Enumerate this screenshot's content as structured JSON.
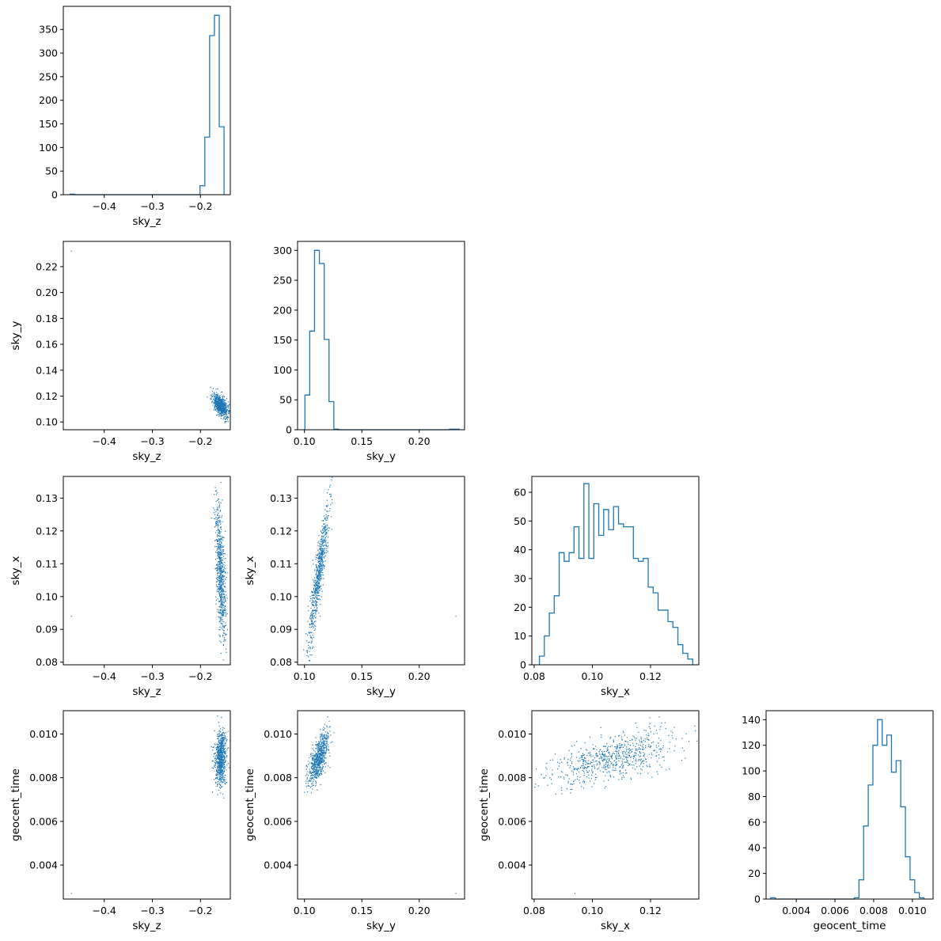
{
  "chart_data": [
    {
      "type": "histogram",
      "panel": "hist-sky_z",
      "xlabel": "sky_z",
      "ylabel": "",
      "xlim": [
        -0.485,
        -0.138
      ],
      "ylim": [
        0,
        399
      ],
      "xticks": [
        -0.4,
        -0.3,
        -0.2
      ],
      "xtick_labels": [
        "−0.4",
        "−0.3",
        "−0.2"
      ],
      "yticks": [
        0,
        50,
        100,
        150,
        200,
        250,
        300,
        350
      ],
      "ytick_labels": [
        "0",
        "50",
        "100",
        "150",
        "200",
        "250",
        "300",
        "350"
      ],
      "edges": [
        -0.471,
        -0.461,
        -0.451,
        -0.441,
        -0.431,
        -0.421,
        -0.411,
        -0.401,
        -0.391,
        -0.381,
        -0.371,
        -0.361,
        -0.351,
        -0.341,
        -0.331,
        -0.321,
        -0.311,
        -0.301,
        -0.291,
        -0.281,
        -0.271,
        -0.261,
        -0.251,
        -0.241,
        -0.231,
        -0.221,
        -0.211,
        -0.201,
        -0.191,
        -0.181,
        -0.171,
        -0.161,
        -0.151
      ],
      "counts": [
        1,
        0,
        0,
        0,
        0,
        0,
        0,
        0,
        0,
        0,
        0,
        0,
        0,
        0,
        0,
        0,
        0,
        0,
        0,
        0,
        0,
        0,
        0,
        0,
        0,
        0,
        0,
        19,
        122,
        337,
        380,
        144
      ]
    },
    {
      "type": "scatter",
      "panel": "sky_z-vs-sky_y",
      "xlabel": "sky_z",
      "ylabel": "sky_y",
      "xlim": [
        -0.485,
        -0.138
      ],
      "ylim": [
        0.094,
        0.2395
      ],
      "xticks": [
        -0.4,
        -0.3,
        -0.2
      ],
      "xtick_labels": [
        "−0.4",
        "−0.3",
        "−0.2"
      ],
      "yticks": [
        0.1,
        0.12,
        0.14,
        0.16,
        0.18,
        0.2,
        0.22
      ],
      "ytick_labels": [
        "0.10",
        "0.12",
        "0.14",
        "0.16",
        "0.18",
        "0.20",
        "0.22"
      ],
      "outliers": [
        {
          "x": -0.468,
          "y": 0.232
        }
      ],
      "clusters": [
        {
          "n": 700,
          "mean": [
            -0.158,
            0.1125
          ],
          "sd": [
            0.008,
            0.0045
          ],
          "corr": -0.5
        }
      ]
    },
    {
      "type": "histogram",
      "panel": "hist-sky_y",
      "xlabel": "sky_y",
      "ylabel": "",
      "xlim": [
        0.094,
        0.2395
      ],
      "ylim": [
        0,
        315
      ],
      "xticks": [
        0.1,
        0.15,
        0.2
      ],
      "xtick_labels": [
        "0.10",
        "0.15",
        "0.20"
      ],
      "yticks": [
        0,
        50,
        100,
        150,
        200,
        250,
        300
      ],
      "ytick_labels": [
        "0",
        "50",
        "100",
        "150",
        "200",
        "250",
        "300"
      ],
      "edges": [
        0.1004,
        0.1046,
        0.1088,
        0.113,
        0.1172,
        0.1214,
        0.1256,
        0.1298,
        0.134,
        0.1382,
        0.1424,
        0.1466,
        0.1508,
        0.155,
        0.1592,
        0.1634,
        0.1676,
        0.1718,
        0.176,
        0.1802,
        0.1844,
        0.1886,
        0.1928,
        0.197,
        0.2012,
        0.2054,
        0.2096,
        0.2138,
        0.218,
        0.2222,
        0.2264,
        0.2306,
        0.2348
      ],
      "counts": [
        58,
        165,
        300,
        278,
        151,
        47,
        1,
        0,
        0,
        0,
        0,
        0,
        0,
        0,
        0,
        0,
        0,
        0,
        0,
        0,
        0,
        0,
        0,
        0,
        0,
        0,
        0,
        0,
        0,
        0,
        1,
        1
      ]
    },
    {
      "type": "scatter",
      "panel": "sky_z-vs-sky_x",
      "xlabel": "sky_z",
      "ylabel": "sky_x",
      "xlim": [
        -0.485,
        -0.138
      ],
      "ylim": [
        0.0792,
        0.1366
      ],
      "xticks": [
        -0.4,
        -0.3,
        -0.2
      ],
      "xtick_labels": [
        "−0.4",
        "−0.3",
        "−0.2"
      ],
      "yticks": [
        0.08,
        0.09,
        0.1,
        0.11,
        0.12,
        0.13
      ],
      "ytick_labels": [
        "0.08",
        "0.09",
        "0.10",
        "0.11",
        "0.12",
        "0.13"
      ],
      "outliers": [
        {
          "x": -0.468,
          "y": 0.094
        }
      ],
      "clusters": [
        {
          "n": 700,
          "mean": [
            -0.158,
            0.107
          ],
          "sd": [
            0.0055,
            0.0105
          ],
          "corr": -0.55
        }
      ]
    },
    {
      "type": "scatter",
      "panel": "sky_y-vs-sky_x",
      "xlabel": "sky_y",
      "ylabel": "sky_x",
      "xlim": [
        0.094,
        0.2395
      ],
      "ylim": [
        0.0792,
        0.1366
      ],
      "xticks": [
        0.1,
        0.15,
        0.2
      ],
      "xtick_labels": [
        "0.10",
        "0.15",
        "0.20"
      ],
      "yticks": [
        0.08,
        0.09,
        0.1,
        0.11,
        0.12,
        0.13
      ],
      "ytick_labels": [
        "0.08",
        "0.09",
        "0.10",
        "0.11",
        "0.12",
        "0.13"
      ],
      "outliers": [
        {
          "x": 0.232,
          "y": 0.094
        }
      ],
      "clusters": [
        {
          "n": 700,
          "mean": [
            0.1125,
            0.107
          ],
          "sd": [
            0.0045,
            0.0105
          ],
          "corr": 0.9
        }
      ]
    },
    {
      "type": "histogram",
      "panel": "hist-sky_x",
      "xlabel": "sky_x",
      "ylabel": "",
      "xlim": [
        0.0792,
        0.1366
      ],
      "ylim": [
        0,
        65.5
      ],
      "xticks": [
        0.08,
        0.1,
        0.12
      ],
      "xtick_labels": [
        "0.08",
        "0.10",
        "0.12"
      ],
      "yticks": [
        0,
        10,
        20,
        30,
        40,
        50,
        60
      ],
      "ytick_labels": [
        "0",
        "10",
        "20",
        "30",
        "40",
        "50",
        "60"
      ],
      "edges": [
        0.0818,
        0.0835,
        0.0852,
        0.0869,
        0.0886,
        0.0903,
        0.092,
        0.0937,
        0.0954,
        0.0971,
        0.0988,
        0.1005,
        0.1022,
        0.1039,
        0.1056,
        0.1073,
        0.109,
        0.1107,
        0.1124,
        0.1141,
        0.1158,
        0.1175,
        0.1192,
        0.1209,
        0.1226,
        0.1243,
        0.126,
        0.1277,
        0.1294,
        0.1311,
        0.1328,
        0.1345
      ],
      "counts": [
        3,
        10,
        18,
        24,
        39,
        36,
        39,
        48,
        37,
        63,
        37,
        56,
        45,
        54,
        47,
        55,
        49,
        48,
        48,
        37,
        36,
        37,
        27,
        25,
        19,
        19,
        15,
        13,
        7,
        4,
        2
      ]
    },
    {
      "type": "scatter",
      "panel": "sky_z-vs-geocent_time",
      "xlabel": "sky_z",
      "ylabel": "geocent_time",
      "xlim": [
        -0.485,
        -0.138
      ],
      "ylim": [
        0.00244,
        0.01107
      ],
      "xticks": [
        -0.4,
        -0.3,
        -0.2
      ],
      "xtick_labels": [
        "−0.4",
        "−0.3",
        "−0.2"
      ],
      "yticks": [
        0.004,
        0.006,
        0.008,
        0.01
      ],
      "ytick_labels": [
        "0.004",
        "0.006",
        "0.008",
        "0.010"
      ],
      "outliers": [
        {
          "x": -0.468,
          "y": 0.0027
        }
      ],
      "clusters": [
        {
          "n": 700,
          "mean": [
            -0.158,
            0.0089
          ],
          "sd": [
            0.006,
            0.00062
          ],
          "corr": 0.15
        }
      ]
    },
    {
      "type": "scatter",
      "panel": "sky_y-vs-geocent_time",
      "xlabel": "sky_y",
      "ylabel": "geocent_time",
      "xlim": [
        0.094,
        0.2395
      ],
      "ylim": [
        0.00244,
        0.01107
      ],
      "xticks": [
        0.1,
        0.15,
        0.2
      ],
      "xtick_labels": [
        "0.10",
        "0.15",
        "0.20"
      ],
      "yticks": [
        0.004,
        0.006,
        0.008,
        0.01
      ],
      "ytick_labels": [
        "0.004",
        "0.006",
        "0.008",
        "0.010"
      ],
      "outliers": [
        {
          "x": 0.232,
          "y": 0.0027
        }
      ],
      "clusters": [
        {
          "n": 700,
          "mean": [
            0.1125,
            0.0089
          ],
          "sd": [
            0.0045,
            0.00062
          ],
          "corr": 0.7
        }
      ]
    },
    {
      "type": "scatter",
      "panel": "sky_x-vs-geocent_time",
      "xlabel": "sky_x",
      "ylabel": "geocent_time",
      "xlim": [
        0.0792,
        0.1366
      ],
      "ylim": [
        0.00244,
        0.01107
      ],
      "xticks": [
        0.08,
        0.1,
        0.12
      ],
      "xtick_labels": [
        "0.08",
        "0.10",
        "0.12"
      ],
      "yticks": [
        0.004,
        0.006,
        0.008,
        0.01
      ],
      "ytick_labels": [
        "0.004",
        "0.006",
        "0.008",
        "0.010"
      ],
      "outliers": [
        {
          "x": 0.094,
          "y": 0.0027
        }
      ],
      "clusters": [
        {
          "n": 700,
          "mean": [
            0.107,
            0.0089
          ],
          "sd": [
            0.0105,
            0.00062
          ],
          "corr": 0.55
        }
      ]
    },
    {
      "type": "histogram",
      "panel": "hist-geocent_time",
      "xlabel": "geocent_time",
      "ylabel": "",
      "xlim": [
        0.00244,
        0.01107
      ],
      "ylim": [
        0,
        147
      ],
      "xticks": [
        0.004,
        0.006,
        0.008,
        0.01
      ],
      "xtick_labels": [
        "0.004",
        "0.006",
        "0.008",
        "0.010"
      ],
      "yticks": [
        0,
        20,
        40,
        60,
        80,
        100,
        120,
        140
      ],
      "ytick_labels": [
        "0",
        "20",
        "40",
        "60",
        "80",
        "100",
        "120",
        "140"
      ],
      "edges": [
        0.00268,
        0.00292,
        0.00316,
        0.0034,
        0.00364,
        0.00388,
        0.00412,
        0.00436,
        0.0046,
        0.00484,
        0.00508,
        0.00532,
        0.00556,
        0.0058,
        0.00604,
        0.00628,
        0.00652,
        0.00676,
        0.007,
        0.00724,
        0.00748,
        0.00772,
        0.00796,
        0.0082,
        0.00844,
        0.00868,
        0.00892,
        0.00916,
        0.0094,
        0.00964,
        0.00988,
        0.01012,
        0.01036,
        0.0106
      ],
      "counts": [
        1,
        0,
        0,
        0,
        0,
        0,
        0,
        0,
        0,
        0,
        0,
        0,
        0,
        0,
        0,
        0,
        0,
        0,
        1,
        15,
        57,
        89,
        120,
        140,
        120,
        128,
        99,
        108,
        72,
        33,
        15,
        5,
        1
      ]
    }
  ],
  "style": {
    "line_color": "#1f77b4",
    "axes_color": "#000000",
    "background": "#ffffff"
  }
}
